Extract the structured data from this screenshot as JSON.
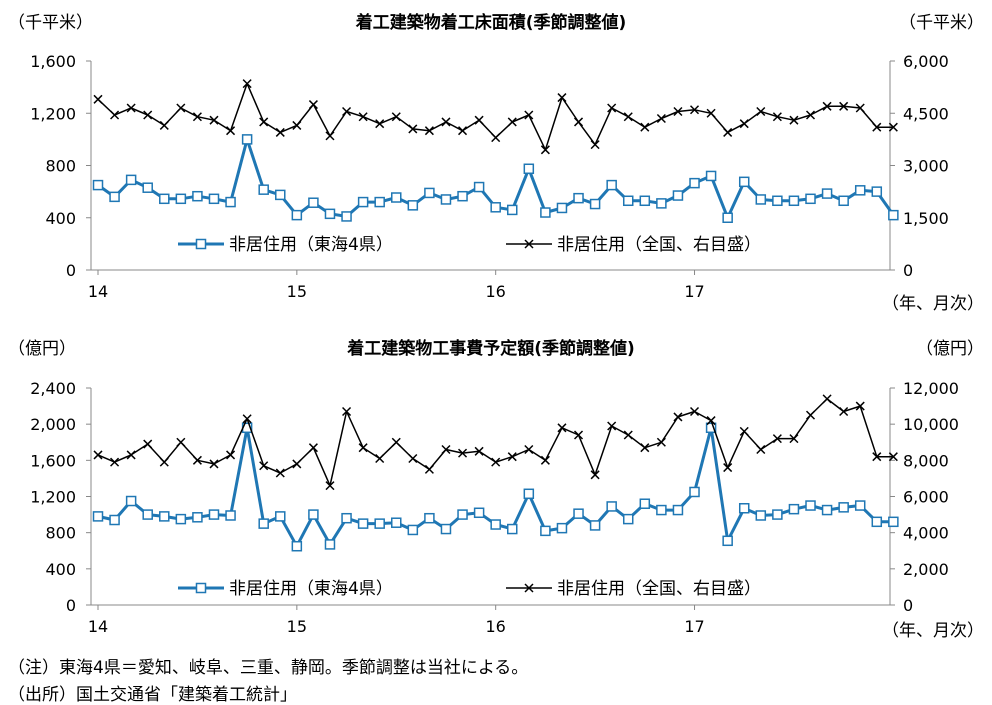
{
  "notes": {
    "note": "（注）東海4県＝愛知、岐阜、三重、静岡。季節調整は当社による。",
    "source": "（出所）国土交通省「建築着工統計」"
  },
  "colors": {
    "blue": "#1f77b4",
    "black": "#000000"
  },
  "chart_data": [
    {
      "type": "line",
      "title": "着工建築物着工床面積(季節調整値)",
      "unit_left": "（千平米）",
      "unit_right": "（千平米）",
      "x_unit": "（年、月次）",
      "x_ticks": [
        "14",
        "15",
        "16",
        "17"
      ],
      "ylim_left": [
        0,
        1600
      ],
      "yticks_left": [
        "0",
        "400",
        "800",
        "1,200",
        "1,600"
      ],
      "ylim_right": [
        0,
        6000
      ],
      "yticks_right": [
        "0",
        "1,500",
        "3,000",
        "4,500",
        "6,000"
      ],
      "series": [
        {
          "name": "非居住用（東海4県）",
          "axis": "left",
          "color": "#1f77b4",
          "values": [
            650,
            560,
            690,
            630,
            545,
            545,
            565,
            545,
            520,
            1000,
            615,
            575,
            420,
            515,
            430,
            410,
            520,
            520,
            555,
            495,
            590,
            540,
            565,
            635,
            480,
            460,
            775,
            440,
            475,
            550,
            505,
            650,
            530,
            530,
            510,
            570,
            665,
            720,
            400,
            675,
            540,
            530,
            530,
            545,
            585,
            530,
            610,
            600,
            420
          ]
        },
        {
          "name": "非居住用（全国、右目盛）",
          "axis": "right",
          "color": "#000000",
          "values": [
            4900,
            4450,
            4650,
            4450,
            4150,
            4650,
            4400,
            4300,
            4000,
            5350,
            4250,
            3950,
            4150,
            4750,
            3850,
            4550,
            4400,
            4200,
            4400,
            4050,
            4000,
            4250,
            4000,
            4300,
            3800,
            4250,
            4450,
            3450,
            4950,
            4250,
            3600,
            4650,
            4400,
            4100,
            4350,
            4550,
            4600,
            4500,
            3950,
            4200,
            4550,
            4400,
            4300,
            4450,
            4700,
            4700,
            4650,
            4100,
            4100
          ]
        }
      ]
    },
    {
      "type": "line",
      "title": "着工建築物工事費予定額(季節調整値)",
      "unit_left": "（億円）",
      "unit_right": "（億円）",
      "x_unit": "（年、月次）",
      "x_ticks": [
        "14",
        "15",
        "16",
        "17"
      ],
      "ylim_left": [
        0,
        2400
      ],
      "yticks_left": [
        "0",
        "400",
        "800",
        "1,200",
        "1,600",
        "2,000",
        "2,400"
      ],
      "ylim_right": [
        0,
        12000
      ],
      "yticks_right": [
        "0",
        "2,000",
        "4,000",
        "6,000",
        "8,000",
        "10,000",
        "12,000"
      ],
      "series": [
        {
          "name": "非居住用（東海4県）",
          "axis": "left",
          "color": "#1f77b4",
          "values": [
            980,
            940,
            1150,
            1000,
            980,
            950,
            970,
            1000,
            990,
            1960,
            900,
            980,
            650,
            1000,
            670,
            960,
            900,
            900,
            910,
            830,
            960,
            840,
            1000,
            1020,
            890,
            840,
            1230,
            820,
            850,
            1010,
            880,
            1090,
            950,
            1120,
            1050,
            1050,
            1250,
            1960,
            710,
            1070,
            990,
            1000,
            1060,
            1100,
            1050,
            1080,
            1100,
            920,
            920
          ]
        },
        {
          "name": "非居住用（全国、右目盛）",
          "axis": "right",
          "color": "#000000",
          "values": [
            8300,
            7900,
            8300,
            8900,
            7900,
            9000,
            8000,
            7800,
            8300,
            10300,
            7700,
            7300,
            7800,
            8700,
            6600,
            10700,
            8700,
            8100,
            9000,
            8100,
            7500,
            8600,
            8400,
            8500,
            7900,
            8200,
            8600,
            8000,
            9800,
            9400,
            7200,
            9900,
            9400,
            8700,
            9000,
            10400,
            10700,
            10200,
            7600,
            9600,
            8600,
            9200,
            9200,
            10500,
            11400,
            10700,
            11000,
            8200,
            8200
          ]
        }
      ]
    }
  ]
}
